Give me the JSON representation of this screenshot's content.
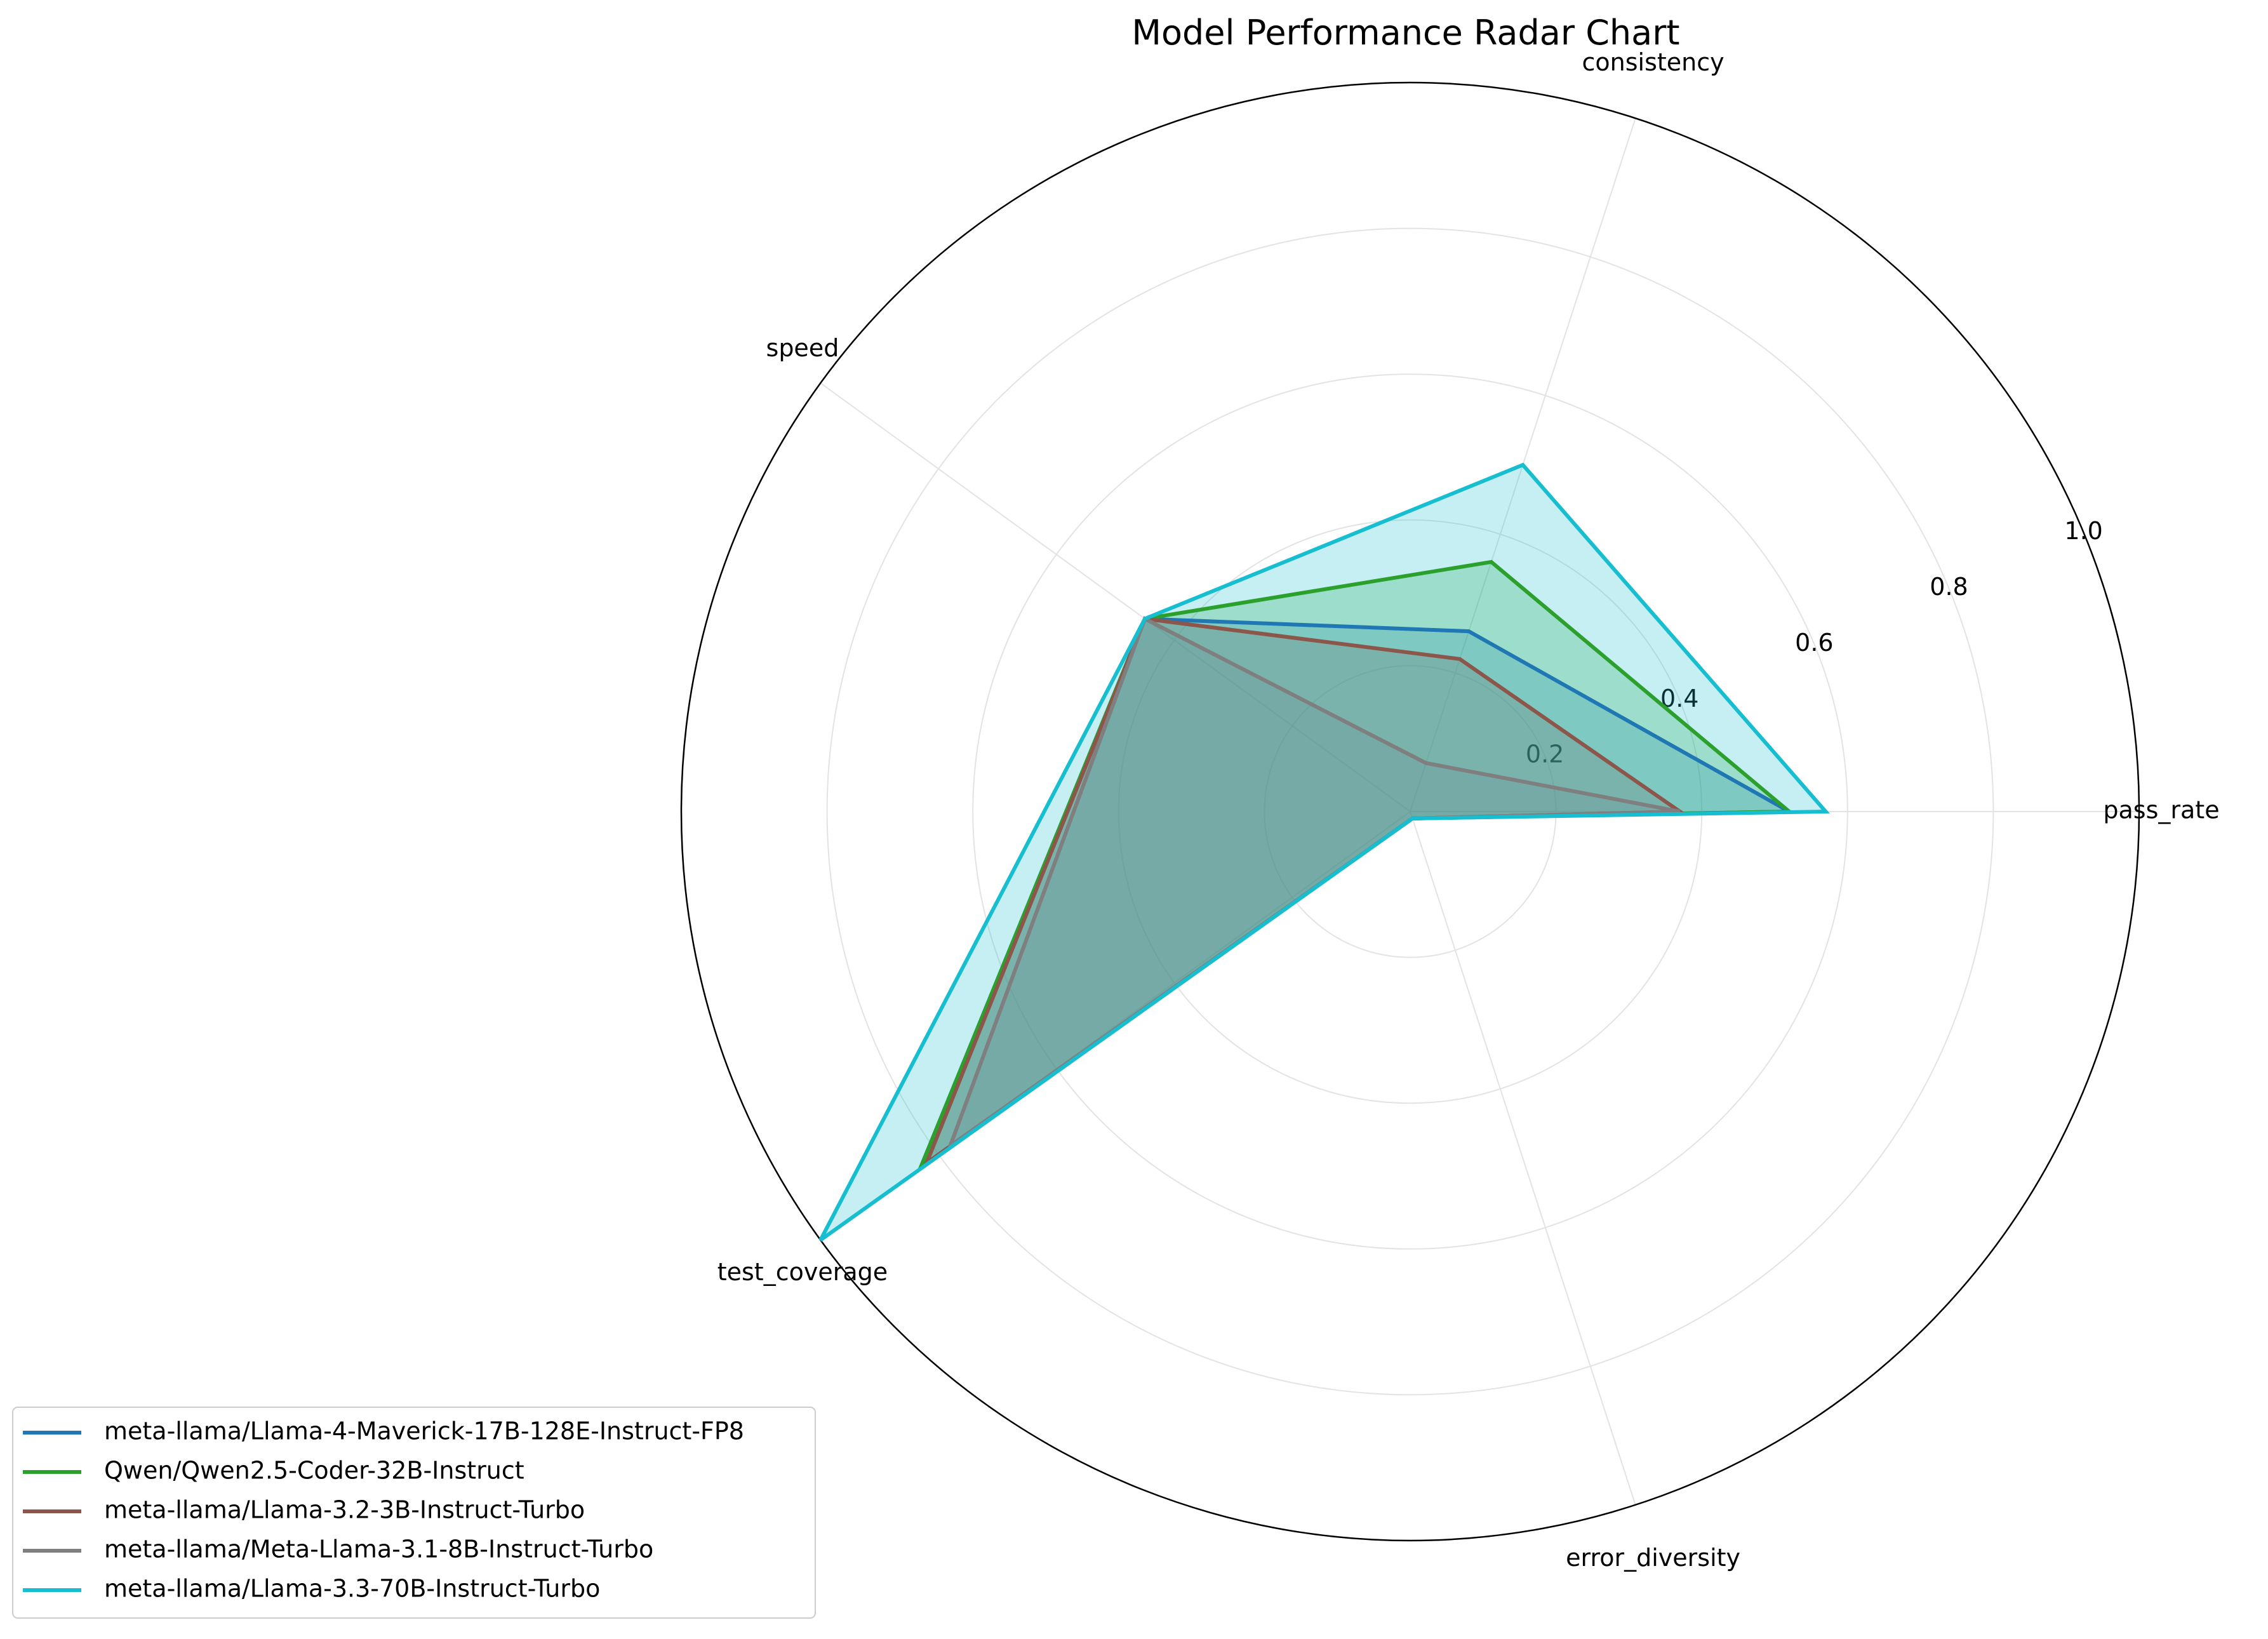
{
  "chart_data": {
    "type": "radar",
    "title": "Model Performance Radar Chart",
    "axes": [
      "pass_rate",
      "consistency",
      "speed",
      "test_coverage",
      "error_diversity"
    ],
    "rlim": [
      0,
      1.0
    ],
    "r_ticks": [
      0.2,
      0.4,
      0.6,
      0.8,
      1.0
    ],
    "r_tick_labels": [
      "0.2",
      "0.4",
      "0.6",
      "0.8",
      "1.0"
    ],
    "grid": true,
    "legend_position": "lower-left",
    "series": [
      {
        "name": "meta-llama/Llama-4-Maverick-17B-128E-Instruct-FP8",
        "color": "#1f77b4",
        "values": [
          0.52,
          0.26,
          0.45,
          0.83,
          0.01
        ]
      },
      {
        "name": "Qwen/Qwen2.5-Coder-32B-Instruct",
        "color": "#2ca02c",
        "values": [
          0.52,
          0.36,
          0.45,
          0.83,
          0.01
        ]
      },
      {
        "name": "meta-llama/Llama-3.2-3B-Instruct-Turbo",
        "color": "#8c564b",
        "values": [
          0.37,
          0.22,
          0.45,
          0.82,
          0.01
        ]
      },
      {
        "name": "meta-llama/Meta-Llama-3.1-8B-Instruct-Turbo",
        "color": "#7f7f7f",
        "values": [
          0.37,
          0.07,
          0.45,
          0.78,
          0.01
        ]
      },
      {
        "name": "meta-llama/Llama-3.3-70B-Instruct-Turbo",
        "color": "#17becf",
        "values": [
          0.57,
          0.5,
          0.45,
          1.0,
          0.01
        ]
      }
    ]
  }
}
